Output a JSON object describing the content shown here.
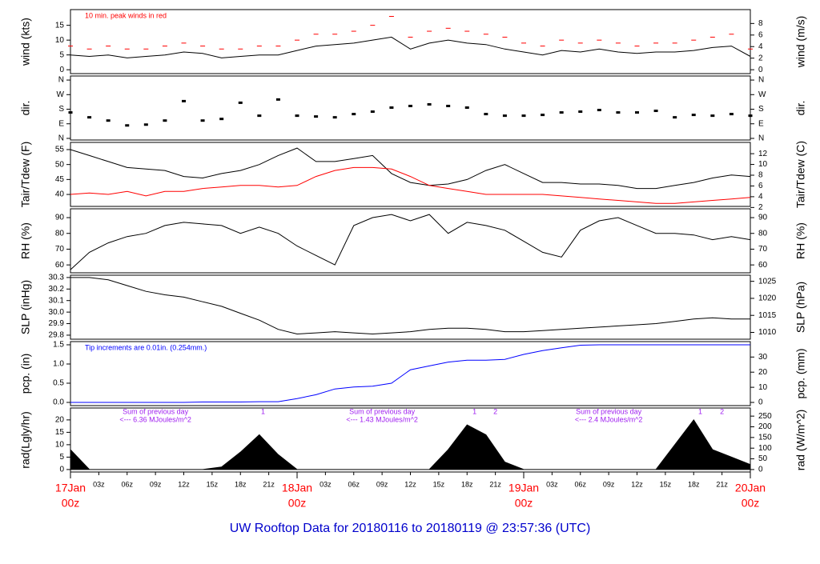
{
  "title": "UW Rooftop Data for 20180116  to  20180119 @ 23:57:36  (UTC)",
  "chart_data": [
    {
      "type": "line",
      "ylabel": "wind (kts)",
      "y2label": "wind (m/s)",
      "annotation": "10 min. peak winds in red",
      "annotation_color": "#ff0000",
      "xlim": [
        0,
        72
      ],
      "ylim": [
        -1.3,
        20.3
      ],
      "yticks": [
        0,
        5,
        10,
        15
      ],
      "y2lim": [
        -0.67,
        10.4
      ],
      "y2ticks": [
        0,
        2,
        4,
        6,
        8
      ],
      "x": [
        0,
        2,
        4,
        6,
        8,
        10,
        12,
        14,
        16,
        18,
        20,
        22,
        24,
        26,
        28,
        30,
        32,
        34,
        36,
        38,
        40,
        42,
        44,
        46,
        48,
        50,
        52,
        54,
        56,
        58,
        60,
        62,
        64,
        66,
        68,
        70,
        72
      ],
      "series": [
        {
          "color": "#000000",
          "values": [
            5,
            4.5,
            5,
            4,
            4.5,
            5,
            6,
            5.5,
            4,
            4.5,
            5,
            5,
            6.5,
            8,
            8.5,
            9,
            10,
            11,
            7,
            9,
            10,
            9,
            8.5,
            7,
            6,
            5,
            6.5,
            6,
            7,
            6,
            5.5,
            6,
            6,
            6.5,
            7.5,
            8,
            4.5
          ]
        },
        {
          "color": "#ff0000",
          "marker": "dash",
          "values": [
            8,
            7,
            8,
            7,
            7,
            8,
            9,
            8,
            7,
            7,
            8,
            8,
            10,
            12,
            12,
            13,
            15,
            18,
            11,
            13,
            14,
            13,
            12,
            11,
            9,
            8,
            10,
            9,
            10,
            9,
            8,
            9,
            9,
            10,
            11,
            12,
            7
          ]
        }
      ]
    },
    {
      "type": "scatter",
      "ylabel": "dir.",
      "y2label": "dir.",
      "xlim": [
        0,
        72
      ],
      "ylim": [
        -10,
        385
      ],
      "yticks": [
        {
          "value": 0,
          "label": "N"
        },
        {
          "value": 90,
          "label": "E"
        },
        {
          "value": 180,
          "label": "S"
        },
        {
          "value": 270,
          "label": "W"
        },
        {
          "value": 360,
          "label": "N"
        }
      ],
      "y2lim": [
        -10,
        385
      ],
      "y2ticks": [
        {
          "value": 0,
          "label": "N"
        },
        {
          "value": 90,
          "label": "E"
        },
        {
          "value": 180,
          "label": "S"
        },
        {
          "value": 270,
          "label": "W"
        },
        {
          "value": 360,
          "label": "N"
        }
      ],
      "x": [
        0,
        2,
        4,
        6,
        8,
        10,
        12,
        14,
        16,
        18,
        20,
        22,
        24,
        26,
        28,
        30,
        32,
        34,
        36,
        38,
        40,
        42,
        44,
        46,
        48,
        50,
        52,
        54,
        56,
        58,
        60,
        62,
        64,
        66,
        68,
        70,
        72
      ],
      "series": [
        {
          "color": "#000000",
          "values": [
            160,
            130,
            110,
            80,
            85,
            110,
            230,
            110,
            120,
            220,
            140,
            240,
            140,
            135,
            130,
            150,
            165,
            190,
            200,
            210,
            200,
            190,
            150,
            140,
            140,
            145,
            160,
            165,
            175,
            160,
            160,
            170,
            130,
            145,
            140,
            150,
            140
          ]
        }
      ]
    },
    {
      "type": "line",
      "ylabel": "Tair/Tdew (F)",
      "y2label": "Tair/Tdew (C)",
      "xlim": [
        0,
        72
      ],
      "ylim": [
        36,
        57.4
      ],
      "yticks": [
        40,
        45,
        50,
        55
      ],
      "y2lim": [
        2.2,
        14.1
      ],
      "y2ticks": [
        2,
        4,
        6,
        8,
        10,
        12
      ],
      "x": [
        0,
        2,
        4,
        6,
        8,
        10,
        12,
        14,
        16,
        18,
        20,
        22,
        24,
        26,
        28,
        30,
        32,
        34,
        36,
        38,
        40,
        42,
        44,
        46,
        48,
        50,
        52,
        54,
        56,
        58,
        60,
        62,
        64,
        66,
        68,
        70,
        72
      ],
      "series": [
        {
          "color": "#000000",
          "values": [
            55,
            53,
            51,
            49,
            48.5,
            48,
            46,
            45.5,
            47,
            48,
            50,
            53,
            55.5,
            51,
            51,
            52,
            53,
            47,
            44,
            43,
            43.5,
            45,
            48,
            50,
            47,
            44,
            44,
            43.5,
            43.5,
            43,
            42,
            42,
            43,
            44,
            45.5,
            46.5,
            46
          ]
        },
        {
          "color": "#ff0000",
          "values": [
            40,
            40.5,
            40,
            41,
            39.5,
            41,
            41,
            42,
            42.5,
            43,
            43,
            42.5,
            43,
            46,
            48,
            49,
            49,
            48.5,
            46,
            43,
            42,
            41,
            40,
            40,
            40,
            40,
            39.5,
            39,
            38.5,
            38,
            37.5,
            37,
            37,
            37.5,
            38,
            38.5,
            39
          ]
        }
      ]
    },
    {
      "type": "line",
      "ylabel": "RH (%)",
      "y2label": "RH (%)",
      "xlim": [
        0,
        72
      ],
      "ylim": [
        55,
        95.6
      ],
      "yticks": [
        60,
        70,
        80,
        90
      ],
      "y2lim": [
        55,
        95.6
      ],
      "y2ticks": [
        60,
        70,
        80,
        90
      ],
      "x": [
        0,
        2,
        4,
        6,
        8,
        10,
        12,
        14,
        16,
        18,
        20,
        22,
        24,
        26,
        28,
        30,
        32,
        34,
        36,
        38,
        40,
        42,
        44,
        46,
        48,
        50,
        52,
        54,
        56,
        58,
        60,
        62,
        64,
        66,
        68,
        70,
        72
      ],
      "series": [
        {
          "color": "#000000",
          "values": [
            57,
            68,
            74,
            78,
            80,
            85,
            87,
            86,
            85,
            80,
            84,
            80,
            72,
            66,
            60,
            85,
            90,
            92,
            88,
            92,
            80,
            87,
            85,
            82,
            75,
            68,
            65,
            82,
            88,
            90,
            85,
            80,
            80,
            79,
            76,
            78,
            76
          ]
        }
      ]
    },
    {
      "type": "line",
      "ylabel": "SLP (inHg)",
      "y2label": "SLP (hPa)",
      "xlim": [
        0,
        72
      ],
      "ylim": [
        29.765,
        30.32
      ],
      "yticks": [
        29.8,
        29.9,
        {
          "value": 30,
          "label": "30.0"
        },
        30.1,
        30.2,
        30.3
      ],
      "y2lim": [
        1008,
        1026.8
      ],
      "y2ticks": [
        1010,
        1015,
        1020,
        1025
      ],
      "x": [
        0,
        2,
        4,
        6,
        8,
        10,
        12,
        14,
        16,
        18,
        20,
        22,
        24,
        26,
        28,
        30,
        32,
        34,
        36,
        38,
        40,
        42,
        44,
        46,
        48,
        50,
        52,
        54,
        56,
        58,
        60,
        62,
        64,
        66,
        68,
        70,
        72
      ],
      "series": [
        {
          "color": "#000000",
          "values": [
            30.3,
            30.3,
            30.28,
            30.23,
            30.18,
            30.15,
            30.13,
            30.09,
            30.05,
            29.99,
            29.93,
            29.85,
            29.81,
            29.82,
            29.83,
            29.82,
            29.81,
            29.82,
            29.83,
            29.85,
            29.86,
            29.86,
            29.85,
            29.83,
            29.83,
            29.84,
            29.85,
            29.86,
            29.87,
            29.88,
            29.89,
            29.9,
            29.92,
            29.94,
            29.95,
            29.94,
            29.94
          ]
        }
      ]
    },
    {
      "type": "line",
      "ylabel": "pcp. (in)",
      "y2label": "pcp. (mm)",
      "annotation": "Tip increments are 0.01in. (0.254mm.)",
      "annotation_color": "#0000ff",
      "xlim": [
        0,
        72
      ],
      "ylim": [
        -0.083,
        1.583
      ],
      "yticks": [
        {
          "value": 0,
          "label": "0.0"
        },
        0.5,
        {
          "value": 1,
          "label": "1.0"
        },
        1.5
      ],
      "y2lim": [
        -2.1,
        40.2
      ],
      "y2ticks": [
        0,
        10,
        20,
        30
      ],
      "x": [
        0,
        2,
        4,
        6,
        8,
        10,
        12,
        14,
        16,
        18,
        20,
        22,
        24,
        26,
        28,
        30,
        32,
        34,
        36,
        38,
        40,
        42,
        44,
        46,
        48,
        50,
        52,
        54,
        56,
        58,
        60,
        62,
        64,
        66,
        68,
        70,
        72
      ],
      "series": [
        {
          "color": "#0000ff",
          "values": [
            0,
            0,
            0,
            0,
            0,
            0,
            0,
            0.01,
            0.01,
            0.01,
            0.02,
            0.02,
            0.1,
            0.2,
            0.35,
            0.4,
            0.42,
            0.5,
            0.85,
            0.95,
            1.05,
            1.1,
            1.1,
            1.12,
            1.25,
            1.35,
            1.42,
            1.49,
            1.5,
            1.5,
            1.5,
            1.5,
            1.5,
            1.5,
            1.5,
            1.5,
            1.5
          ]
        }
      ]
    },
    {
      "type": "area",
      "ylabel": "rad(Lgly/hr)",
      "y2label": "rad (W/m^2)",
      "xlim": [
        0,
        72
      ],
      "ylim": [
        -1,
        24.8
      ],
      "yticks": [
        0,
        5,
        10,
        15,
        20
      ],
      "y2lim": [
        -11.6,
        288
      ],
      "y2ticks": [
        0,
        50,
        100,
        150,
        200,
        250
      ],
      "notes_color": "#a020f0",
      "notes": [
        [
          "Sum of previous day",
          "<--- 6.36 MJoules/m^2"
        ],
        [
          "Sum of previous day",
          "<--- 1.43 MJoules/m^2"
        ],
        [
          "Sum of previous day",
          "<--- 2.4 MJoules/m^2"
        ]
      ],
      "peak_labels": [
        {
          "text": "1",
          "x": 20.4
        },
        {
          "text": "1",
          "x": 42.8
        },
        {
          "text": "2",
          "x": 45
        },
        {
          "text": "1",
          "x": 66.7
        },
        {
          "text": "2",
          "x": 69
        }
      ],
      "xticks": [
        {
          "value": 3,
          "label": "03z"
        },
        {
          "value": 6,
          "label": "06z"
        },
        {
          "value": 9,
          "label": "09z"
        },
        {
          "value": 12,
          "label": "12z"
        },
        {
          "value": 15,
          "label": "15z"
        },
        {
          "value": 18,
          "label": "18z"
        },
        {
          "value": 21,
          "label": "21z"
        },
        {
          "value": 27,
          "label": "03z"
        },
        {
          "value": 30,
          "label": "06z"
        },
        {
          "value": 33,
          "label": "09z"
        },
        {
          "value": 36,
          "label": "12z"
        },
        {
          "value": 39,
          "label": "15z"
        },
        {
          "value": 42,
          "label": "18z"
        },
        {
          "value": 45,
          "label": "21z"
        },
        {
          "value": 51,
          "label": "03z"
        },
        {
          "value": 54,
          "label": "06z"
        },
        {
          "value": 57,
          "label": "09z"
        },
        {
          "value": 60,
          "label": "12z"
        },
        {
          "value": 63,
          "label": "15z"
        },
        {
          "value": 66,
          "label": "18z"
        },
        {
          "value": 69,
          "label": "21z"
        }
      ],
      "day_ticks": [
        {
          "value": 0,
          "label": "17Jan",
          "sublabel": "00z"
        },
        {
          "value": 24,
          "label": "18Jan",
          "sublabel": "00z"
        },
        {
          "value": 48,
          "label": "19Jan",
          "sublabel": "00z"
        },
        {
          "value": 72,
          "label": "20Jan",
          "sublabel": "00z"
        }
      ],
      "x": [
        0,
        2,
        4,
        6,
        8,
        10,
        12,
        14,
        16,
        18,
        20,
        22,
        24,
        26,
        28,
        30,
        32,
        34,
        36,
        38,
        40,
        42,
        44,
        46,
        48,
        50,
        52,
        54,
        56,
        58,
        60,
        62,
        64,
        66,
        68,
        70,
        72
      ],
      "series": [
        {
          "color": "#000000",
          "values": [
            8,
            0,
            0,
            0,
            0,
            0,
            0,
            0,
            1,
            7,
            14,
            6,
            0,
            0,
            0,
            0,
            0,
            0,
            0,
            0,
            8,
            18,
            14,
            3,
            0,
            0,
            0,
            0,
            0,
            0,
            0,
            0,
            10,
            20,
            8,
            5,
            2
          ]
        }
      ]
    }
  ]
}
